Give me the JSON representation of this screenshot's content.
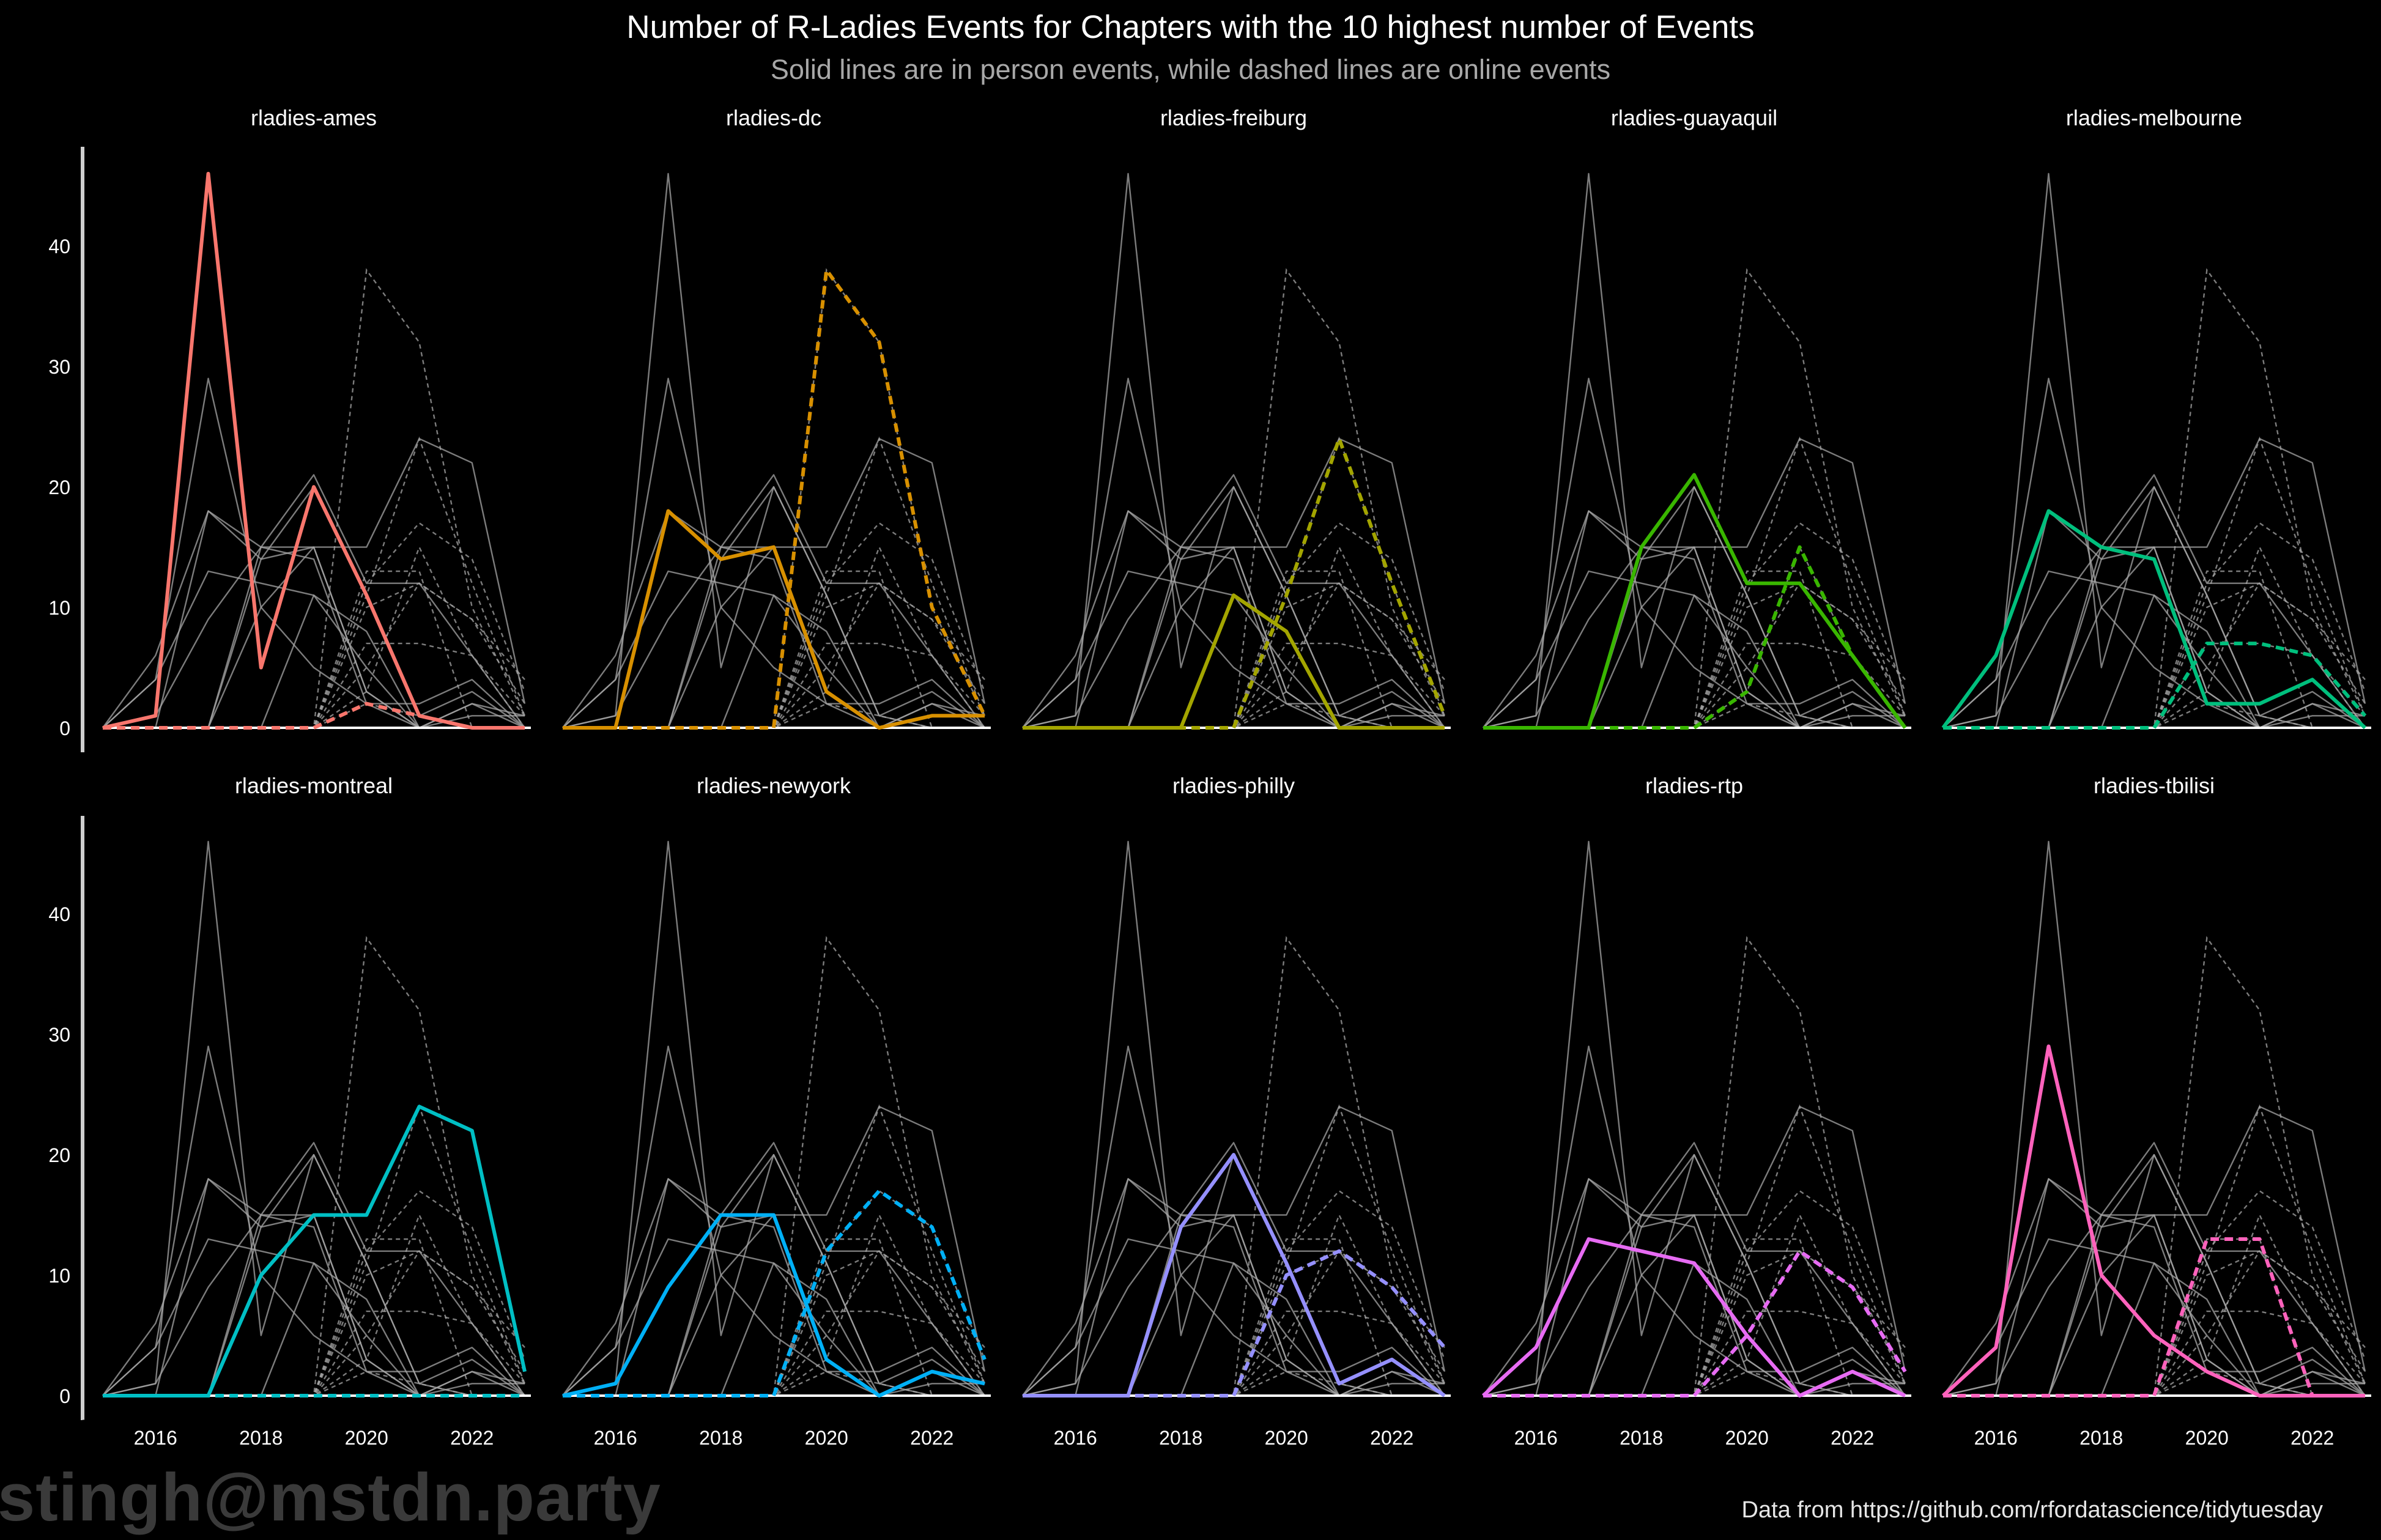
{
  "title": "Number of R-Ladies Events for Chapters with the 10 highest number of Events",
  "subtitle": "Solid lines are in person events, while dashed lines are online events",
  "caption": "Data from https://github.com/rfordatascience/tidytuesday",
  "watermark": "stingh@mstdn.party",
  "chart_data": {
    "type": "line",
    "layout": "small-multiples 2x5",
    "x": [
      2015,
      2016,
      2017,
      2018,
      2019,
      2020,
      2021,
      2022,
      2023
    ],
    "x_ticks": [
      2016,
      2018,
      2020,
      2022
    ],
    "y_ticks": [
      0,
      10,
      20,
      30,
      40
    ],
    "xlim": [
      2015,
      2023
    ],
    "ylim": [
      0,
      46
    ],
    "legend": "none",
    "line_styles": {
      "in_person": "solid",
      "online": "dashed"
    },
    "background_color": "#000000",
    "context_color": "#a6a6a6",
    "series": [
      {
        "name": "rladies-ames",
        "color": "#f8766d",
        "in_person": [
          0,
          1,
          46,
          5,
          20,
          11,
          1,
          0,
          0
        ],
        "online": [
          0,
          0,
          0,
          0,
          0,
          2,
          1,
          0,
          0
        ]
      },
      {
        "name": "rladies-dc",
        "color": "#d89000",
        "in_person": [
          0,
          0,
          18,
          14,
          15,
          3,
          0,
          1,
          1
        ],
        "online": [
          0,
          0,
          0,
          0,
          0,
          38,
          32,
          10,
          1
        ]
      },
      {
        "name": "rladies-freiburg",
        "color": "#a3a500",
        "in_person": [
          0,
          0,
          0,
          0,
          11,
          8,
          0,
          0,
          0
        ],
        "online": [
          0,
          0,
          0,
          0,
          0,
          11,
          24,
          12,
          1
        ]
      },
      {
        "name": "rladies-guayaquil",
        "color": "#39b600",
        "in_person": [
          0,
          0,
          0,
          15,
          21,
          12,
          12,
          6,
          0
        ],
        "online": [
          0,
          0,
          0,
          0,
          0,
          3,
          15,
          6,
          0
        ]
      },
      {
        "name": "rladies-melbourne",
        "color": "#00bf7d",
        "in_person": [
          0,
          6,
          18,
          15,
          14,
          2,
          2,
          4,
          0
        ],
        "online": [
          0,
          0,
          0,
          0,
          0,
          7,
          7,
          6,
          1
        ]
      },
      {
        "name": "rladies-montreal",
        "color": "#00bfc4",
        "in_person": [
          0,
          0,
          0,
          10,
          15,
          15,
          24,
          22,
          2
        ],
        "online": [
          0,
          0,
          0,
          0,
          0,
          0,
          0,
          0,
          0
        ]
      },
      {
        "name": "rladies-newyork",
        "color": "#00b0f6",
        "in_person": [
          0,
          1,
          9,
          15,
          15,
          3,
          0,
          2,
          1
        ],
        "online": [
          0,
          0,
          0,
          0,
          0,
          12,
          17,
          14,
          3
        ]
      },
      {
        "name": "rladies-philly",
        "color": "#9590ff",
        "in_person": [
          0,
          0,
          0,
          14,
          20,
          11,
          1,
          3,
          0
        ],
        "online": [
          0,
          0,
          0,
          0,
          0,
          10,
          12,
          9,
          4
        ]
      },
      {
        "name": "rladies-rtp",
        "color": "#e76bf3",
        "in_person": [
          0,
          4,
          13,
          12,
          11,
          5,
          0,
          2,
          0
        ],
        "online": [
          0,
          0,
          0,
          0,
          0,
          5,
          12,
          9,
          2
        ]
      },
      {
        "name": "rladies-tbilisi",
        "color": "#ff62bc",
        "in_person": [
          0,
          4,
          29,
          10,
          5,
          2,
          0,
          0,
          0
        ],
        "online": [
          0,
          0,
          0,
          0,
          0,
          13,
          13,
          0,
          0
        ]
      }
    ]
  }
}
